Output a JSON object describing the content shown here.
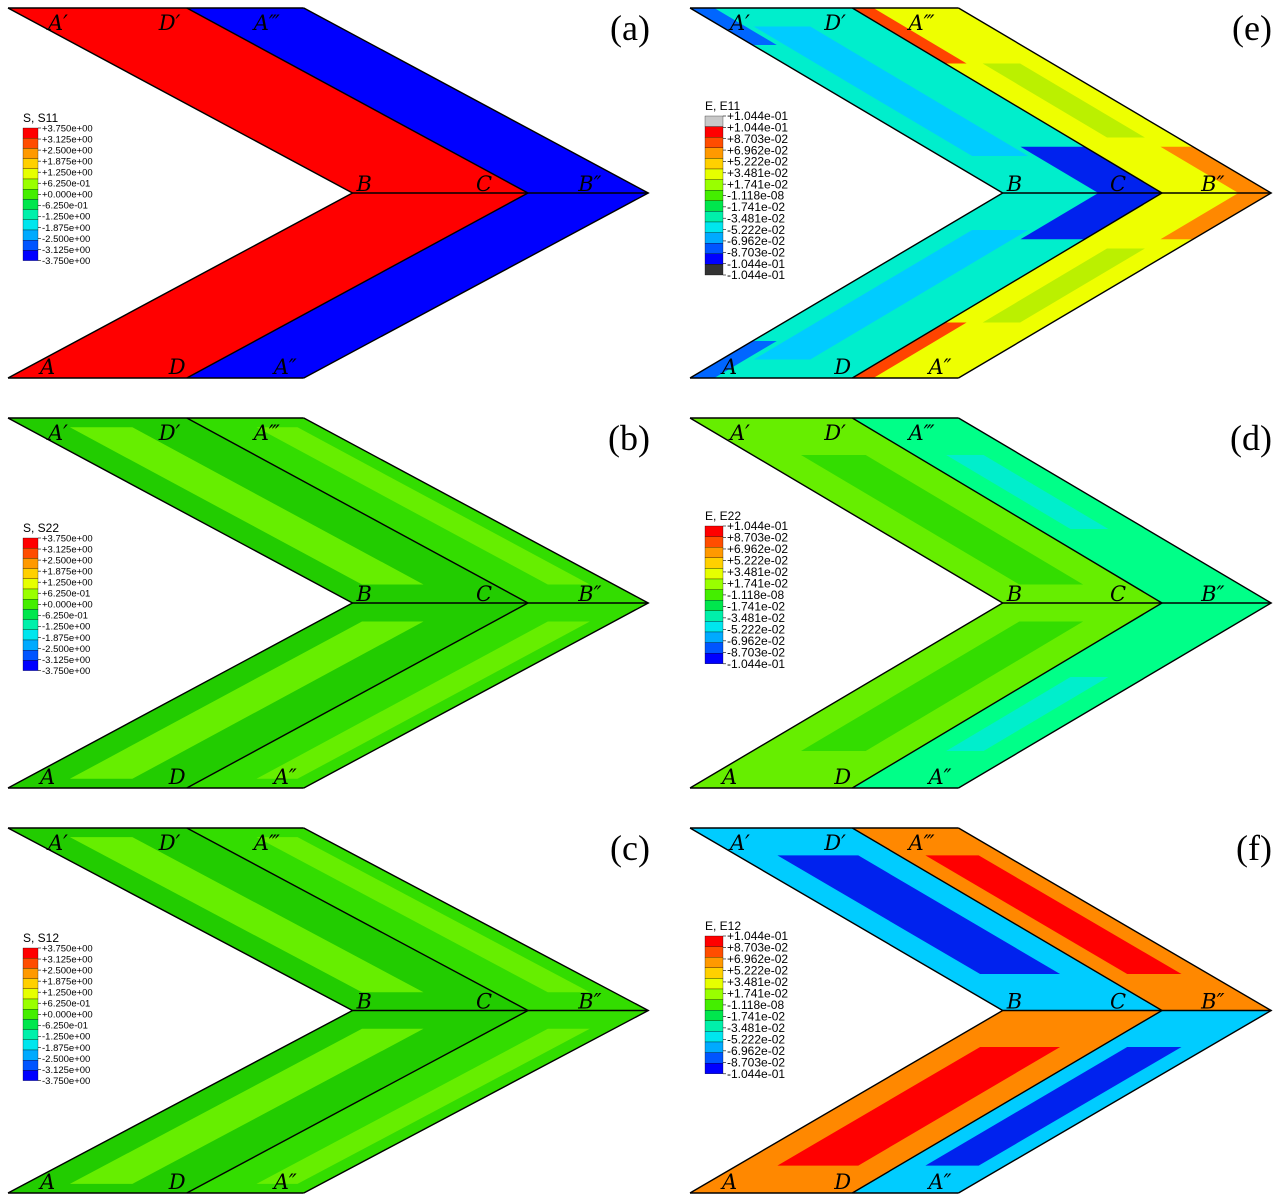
{
  "palette": {
    "red": "#ff0000",
    "blue": "#0000ff",
    "green": "#33dd00",
    "dark_green": "#22cc00",
    "light_green": "#66ee00",
    "yellow_green": "#bbf000",
    "yellow": "#eeff00",
    "orange": "#ff8800",
    "orange_red": "#ff4400",
    "cyan": "#00eecc",
    "light_blue": "#00ccff",
    "mid_blue": "#0066ff",
    "dark_blue": "#0022ee",
    "sea_green": "#00ff88",
    "outline": "#000000"
  },
  "legend_colors": [
    "#ff0000",
    "#ff4d00",
    "#ff9900",
    "#ffd000",
    "#e6ff00",
    "#99ff00",
    "#44ee00",
    "#00e64d",
    "#00f0aa",
    "#00e6ee",
    "#00aaff",
    "#0055ff",
    "#0000ff"
  ],
  "legend_colors_e11": [
    "#c8c8c8",
    "#ff0000",
    "#ff4d00",
    "#ff9900",
    "#ffd000",
    "#e6ff00",
    "#99ff00",
    "#44ee00",
    "#00e64d",
    "#00f0aa",
    "#00e6ee",
    "#00aaff",
    "#0055ff",
    "#0000ff",
    "#333333"
  ],
  "point_labels": {
    "A": "A",
    "A1": "A′",
    "A2": "A″",
    "A3": "A‴",
    "B": "B",
    "B2": "B″",
    "C": "C",
    "D": "D",
    "D1": "D′"
  },
  "panels": [
    {
      "tag": "(a)",
      "legend_title": "S, S11",
      "legend_values": [
        "+3.750e+00",
        "+3.125e+00",
        "+2.500e+00",
        "+1.875e+00",
        "+1.250e+00",
        "+6.250e-01",
        "+0.000e+00",
        "-6.250e-01",
        "-1.250e+00",
        "-1.875e+00",
        "-2.500e+00",
        "-3.125e+00",
        "-3.750e+00"
      ],
      "field": "s11"
    },
    {
      "tag": "(b)",
      "legend_title": "S, S22",
      "legend_values": [
        "+3.750e+00",
        "+3.125e+00",
        "+2.500e+00",
        "+1.875e+00",
        "+1.250e+00",
        "+6.250e-01",
        "+0.000e+00",
        "-6.250e-01",
        "-1.250e+00",
        "-1.875e+00",
        "-2.500e+00",
        "-3.125e+00",
        "-3.750e+00"
      ],
      "field": "s22"
    },
    {
      "tag": "(c)",
      "legend_title": "S, S12",
      "legend_values": [
        "+3.750e+00",
        "+3.125e+00",
        "+2.500e+00",
        "+1.875e+00",
        "+1.250e+00",
        "+6.250e-01",
        "+0.000e+00",
        "-6.250e-01",
        "-1.250e+00",
        "-1.875e+00",
        "-2.500e+00",
        "-3.125e+00",
        "-3.750e+00"
      ],
      "field": "s12"
    },
    {
      "tag": "(e)",
      "legend_title": "E, E11",
      "legend_values": [
        "+1.044e-01",
        "+1.044e-01",
        "+8.703e-02",
        "+6.962e-02",
        "+5.222e-02",
        "+3.481e-02",
        "+1.741e-02",
        "-1.118e-08",
        "-1.741e-02",
        "-3.481e-02",
        "-5.222e-02",
        "-6.962e-02",
        "-8.703e-02",
        "-1.044e-01",
        "-1.044e-01"
      ],
      "field": "e11"
    },
    {
      "tag": "(d)",
      "legend_title": "E, E22",
      "legend_values": [
        "+1.044e-01",
        "+8.703e-02",
        "+6.962e-02",
        "+5.222e-02",
        "+3.481e-02",
        "+1.741e-02",
        "-1.118e-08",
        "-1.741e-02",
        "-3.481e-02",
        "-5.222e-02",
        "-6.962e-02",
        "-8.703e-02",
        "-1.044e-01"
      ],
      "field": "e22"
    },
    {
      "tag": "(f)",
      "legend_title": "E, E12",
      "legend_values": [
        "+1.044e-01",
        "+8.703e-02",
        "+6.962e-02",
        "+5.222e-02",
        "+3.481e-02",
        "+1.741e-02",
        "-1.118e-08",
        "-1.741e-02",
        "-3.481e-02",
        "-5.222e-02",
        "-6.962e-02",
        "-8.703e-02",
        "-1.044e-01"
      ],
      "field": "e12"
    }
  ]
}
